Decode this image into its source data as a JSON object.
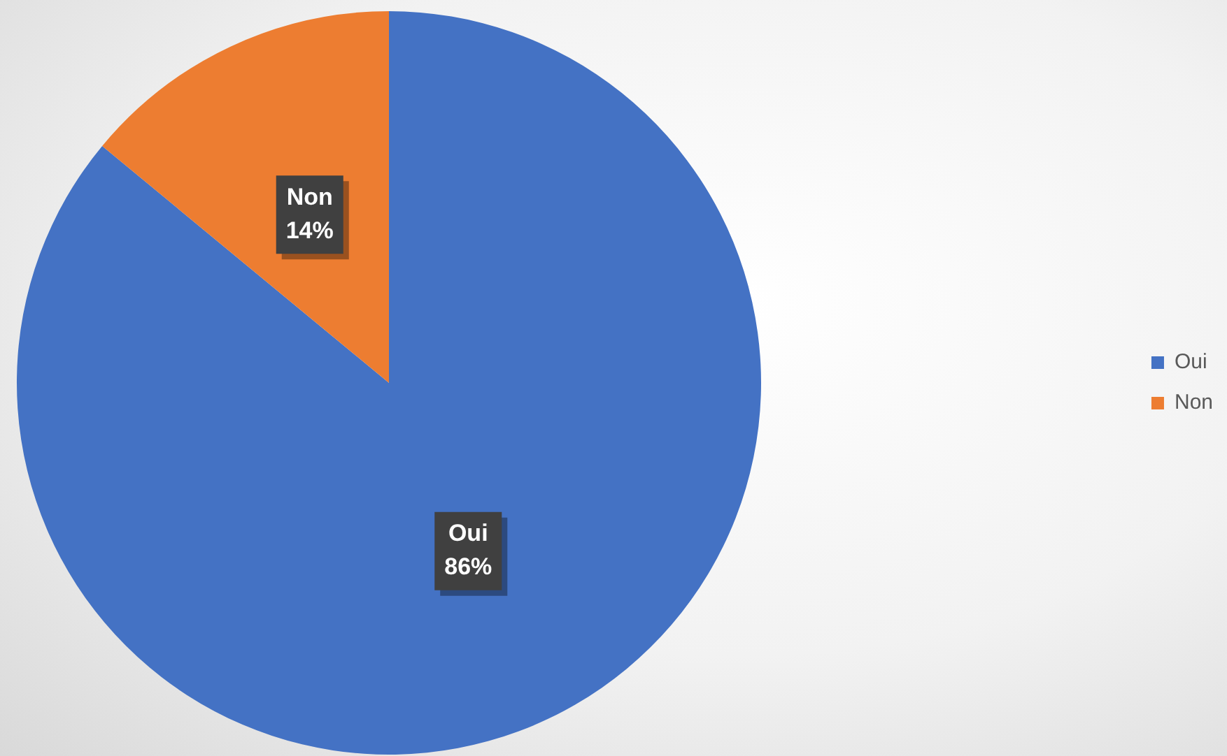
{
  "chart_data": {
    "type": "pie",
    "categories": [
      "Oui",
      "Non"
    ],
    "values": [
      86,
      14
    ],
    "colors": [
      "#4472c4",
      "#ed7d31"
    ],
    "value_labels": [
      "86%",
      "14%"
    ],
    "legend": "right"
  }
}
